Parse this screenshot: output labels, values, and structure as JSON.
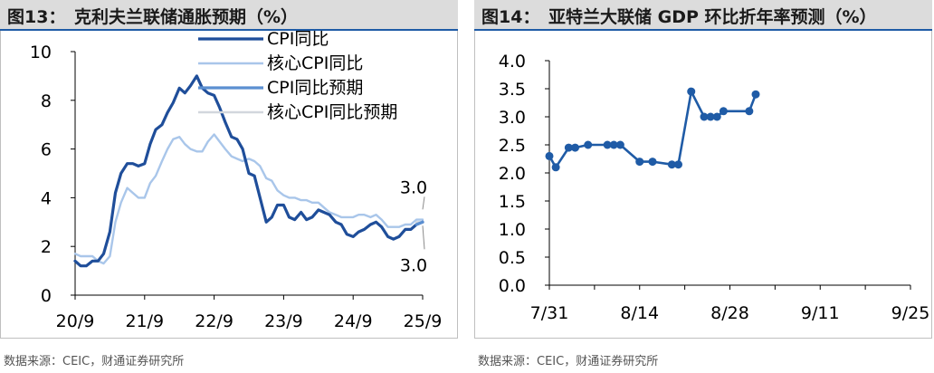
{
  "left": {
    "fig_label": "图13：",
    "title": "克利夫兰联储通胀预期（%）",
    "source": "数据来源：CEIC，财通证券研究所"
  },
  "right": {
    "fig_label": "图14：",
    "title": "亚特兰大联储 GDP 环比折年率预测（%）",
    "source": "数据来源：CEIC，财通证券研究所"
  },
  "chart_data": [
    {
      "type": "line",
      "title": "克利夫兰联储通胀预期（%）",
      "x_tick_labels": [
        "20/9",
        "21/9",
        "22/9",
        "23/9",
        "24/9",
        "25/9"
      ],
      "ylim": [
        0,
        10
      ],
      "y_ticks": [
        0,
        2,
        4,
        6,
        8,
        10
      ],
      "grid": false,
      "legend": "top-center",
      "annotations": [
        "3.0",
        "3.0"
      ],
      "series": [
        {
          "name": "CPI同比",
          "color": "#1f4e9a",
          "x": [
            2020.67,
            2020.75,
            2020.83,
            2020.92,
            2021.0,
            2021.08,
            2021.17,
            2021.25,
            2021.33,
            2021.42,
            2021.5,
            2021.58,
            2021.67,
            2021.75,
            2021.83,
            2021.92,
            2022.0,
            2022.08,
            2022.17,
            2022.25,
            2022.33,
            2022.42,
            2022.5,
            2022.58,
            2022.67,
            2022.75,
            2022.83,
            2022.92,
            2023.0,
            2023.08,
            2023.17,
            2023.25,
            2023.33,
            2023.42,
            2023.5,
            2023.58,
            2023.67,
            2023.75,
            2023.83,
            2023.92,
            2024.0,
            2024.08,
            2024.17,
            2024.25,
            2024.33,
            2024.42,
            2024.5,
            2024.58,
            2024.67,
            2024.75,
            2024.83,
            2024.92,
            2025.0,
            2025.08,
            2025.17,
            2025.25,
            2025.33,
            2025.42,
            2025.5,
            2025.58,
            2025.67
          ],
          "y": [
            1.4,
            1.2,
            1.2,
            1.4,
            1.4,
            1.7,
            2.6,
            4.2,
            5.0,
            5.4,
            5.4,
            5.3,
            5.4,
            6.2,
            6.8,
            7.0,
            7.5,
            7.9,
            8.5,
            8.3,
            8.6,
            9.0,
            8.5,
            8.3,
            8.2,
            7.7,
            7.1,
            6.5,
            6.4,
            6.0,
            5.0,
            4.9,
            4.0,
            3.0,
            3.2,
            3.7,
            3.7,
            3.2,
            3.1,
            3.4,
            3.1,
            3.2,
            3.5,
            3.4,
            3.3,
            3.0,
            2.9,
            2.5,
            2.4,
            2.6,
            2.7,
            2.9,
            3.0,
            2.8,
            2.4,
            2.3,
            2.4,
            2.7,
            2.7,
            2.9,
            3.0
          ]
        },
        {
          "name": "核心CPI同比",
          "color": "#a9c6ea",
          "x": [
            2020.67,
            2020.75,
            2020.83,
            2020.92,
            2021.0,
            2021.08,
            2021.17,
            2021.25,
            2021.33,
            2021.42,
            2021.5,
            2021.58,
            2021.67,
            2021.75,
            2021.83,
            2021.92,
            2022.0,
            2022.08,
            2022.17,
            2022.25,
            2022.33,
            2022.42,
            2022.5,
            2022.58,
            2022.67,
            2022.75,
            2022.83,
            2022.92,
            2023.0,
            2023.08,
            2023.17,
            2023.25,
            2023.33,
            2023.42,
            2023.5,
            2023.58,
            2023.67,
            2023.75,
            2023.83,
            2023.92,
            2024.0,
            2024.08,
            2024.17,
            2024.25,
            2024.33,
            2024.42,
            2024.5,
            2024.58,
            2024.67,
            2024.75,
            2024.83,
            2024.92,
            2025.0,
            2025.08,
            2025.17,
            2025.25,
            2025.33,
            2025.42,
            2025.5,
            2025.58,
            2025.67
          ],
          "y": [
            1.7,
            1.6,
            1.6,
            1.6,
            1.4,
            1.3,
            1.6,
            3.0,
            3.8,
            4.4,
            4.2,
            4.0,
            4.0,
            4.6,
            4.9,
            5.5,
            6.0,
            6.4,
            6.5,
            6.2,
            6.0,
            5.9,
            5.9,
            6.3,
            6.6,
            6.3,
            6.0,
            5.7,
            5.6,
            5.5,
            5.6,
            5.5,
            5.3,
            4.8,
            4.7,
            4.3,
            4.1,
            4.0,
            4.0,
            3.9,
            3.9,
            3.8,
            3.8,
            3.6,
            3.4,
            3.3,
            3.2,
            3.2,
            3.2,
            3.3,
            3.3,
            3.2,
            3.3,
            3.1,
            2.8,
            2.8,
            2.8,
            2.9,
            2.9,
            3.1,
            3.1
          ]
        },
        {
          "name": "CPI同比预期",
          "color": "#5b8fd1",
          "x": [
            2025.58,
            2025.67
          ],
          "y": [
            2.9,
            3.0
          ]
        },
        {
          "name": "核心CPI同比预期",
          "color": "#d2d7dd",
          "x": [
            2025.58,
            2025.67
          ],
          "y": [
            3.0,
            3.0
          ]
        }
      ]
    },
    {
      "type": "line",
      "title": "亚特兰大联储 GDP 环比折年率预测（%）",
      "x_tick_labels": [
        "7/31",
        "8/14",
        "8/28",
        "9/11",
        "9/25"
      ],
      "ylim": [
        0,
        4
      ],
      "y_ticks": [
        "0.0",
        "0.5",
        "1.0",
        "1.5",
        "2.0",
        "2.5",
        "3.0",
        "3.5",
        "4.0"
      ],
      "grid": false,
      "series": [
        {
          "color": "#1f5ba6",
          "x": [
            0,
            1,
            3,
            4,
            6,
            9,
            10,
            11,
            14,
            16,
            19,
            20,
            22,
            24,
            25,
            26,
            27,
            31,
            32
          ],
          "y": [
            2.3,
            2.1,
            2.45,
            2.45,
            2.5,
            2.5,
            2.5,
            2.5,
            2.2,
            2.2,
            2.15,
            2.15,
            3.45,
            3.0,
            3.0,
            3.0,
            3.1,
            3.1,
            3.4
          ]
        }
      ]
    }
  ]
}
